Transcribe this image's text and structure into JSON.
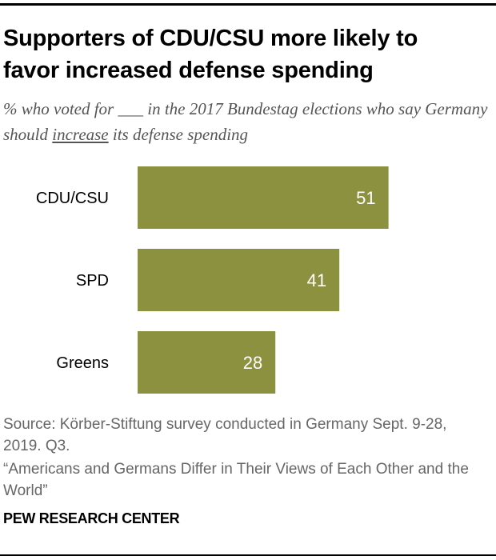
{
  "title_line1": "Supporters of CDU/CSU more likely to",
  "title_line2": "favor increased defense spending",
  "subtitle": {
    "pre": "% who voted for ___ in the 2017 Bundestag elections who say Germany should ",
    "underlined": "increase",
    "post": " its defense spending"
  },
  "chart_data": {
    "type": "bar",
    "orientation": "horizontal",
    "categories": [
      "CDU/CSU",
      "SPD",
      "Greens"
    ],
    "values": [
      51,
      41,
      28
    ],
    "bar_color": "#8c9140",
    "label_color": "#ffffff"
  },
  "source_line": "Source: Körber-Stiftung survey conducted in Germany Sept. 9-28, 2019. Q3.",
  "report_title": "“Americans and Germans Differ in Their Views of Each Other and the World”",
  "brand": "PEW RESEARCH CENTER"
}
